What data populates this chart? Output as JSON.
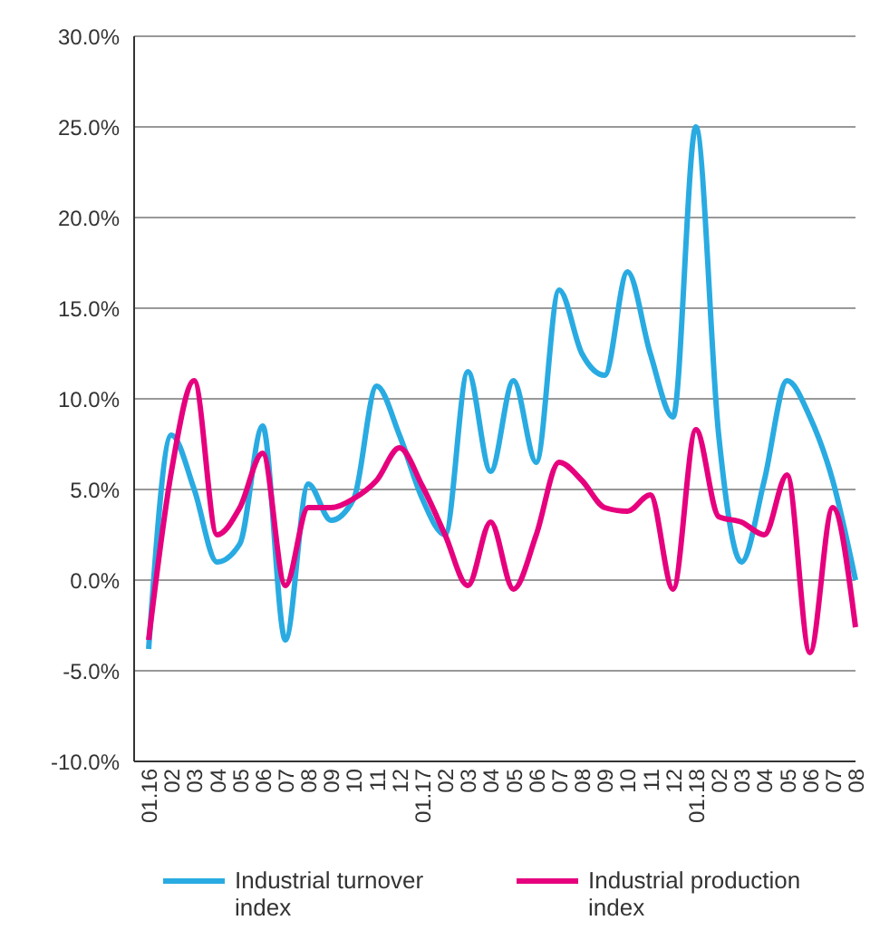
{
  "chart_data": {
    "type": "line",
    "categories": [
      "01.16",
      "02",
      "03",
      "04",
      "05",
      "06",
      "07",
      "08",
      "09",
      "10",
      "11",
      "12",
      "01.17",
      "02",
      "03",
      "04",
      "05",
      "06",
      "07",
      "08",
      "09",
      "10",
      "11",
      "12",
      "01.18",
      "02",
      "03",
      "04",
      "05",
      "06",
      "07",
      "08"
    ],
    "series": [
      {
        "name": "Industrial turnover index",
        "color": "#29abe2",
        "values": [
          -3.8,
          8.0,
          5.0,
          1.0,
          2.0,
          8.5,
          -3.3,
          5.3,
          3.3,
          4.5,
          10.7,
          8.0,
          4.5,
          2.5,
          11.5,
          6.0,
          11.0,
          6.5,
          16.0,
          12.5,
          11.3,
          17.0,
          12.5,
          9.0,
          25.0,
          8.0,
          1.0,
          5.5,
          11.0,
          9.0,
          5.5,
          0.0
        ]
      },
      {
        "name": "Industrial production index",
        "color": "#e6007e",
        "values": [
          -3.3,
          6.0,
          11.0,
          2.5,
          4.0,
          7.0,
          -0.3,
          4.0,
          4.0,
          4.5,
          5.5,
          7.3,
          5.2,
          2.5,
          -0.3,
          3.2,
          -0.5,
          2.5,
          6.5,
          5.5,
          4.0,
          3.8,
          4.7,
          -0.5,
          8.3,
          3.5,
          3.2,
          2.5,
          5.8,
          -4.0,
          4.0,
          -2.6
        ]
      }
    ],
    "ylim": [
      -10,
      30
    ],
    "yticks": [
      {
        "value": -10,
        "label": "-10.0%"
      },
      {
        "value": -5,
        "label": "-5.0%"
      },
      {
        "value": 0,
        "label": "0.0%"
      },
      {
        "value": 5,
        "label": "5.0%"
      },
      {
        "value": 10,
        "label": "10.0%"
      },
      {
        "value": 15,
        "label": "15.0%"
      },
      {
        "value": 20,
        "label": "20.0%"
      },
      {
        "value": 25,
        "label": "25.0%"
      },
      {
        "value": 30,
        "label": "30.0%"
      }
    ],
    "grid": "y",
    "legend": "bottom",
    "marker": "none",
    "line_style": "solid"
  }
}
